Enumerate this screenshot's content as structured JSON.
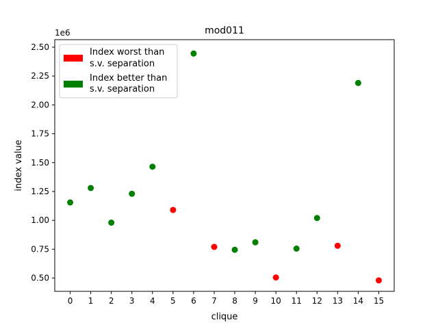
{
  "chart_data": {
    "type": "scatter",
    "title": "mod011",
    "xlabel": "clique",
    "ylabel": "index value",
    "y_offset_label": "1e6",
    "y_scale_factor": 1000000,
    "xlim": [
      -0.75,
      15.75
    ],
    "ylim": [
      0.385,
      2.565
    ],
    "x_ticks": [
      0,
      1,
      2,
      3,
      4,
      5,
      6,
      7,
      8,
      9,
      10,
      11,
      12,
      13,
      14,
      15
    ],
    "y_ticks": [
      0.5,
      0.75,
      1.0,
      1.25,
      1.5,
      1.75,
      2.0,
      2.25,
      2.5
    ],
    "y_tick_labels": [
      "0.50",
      "0.75",
      "1.00",
      "1.25",
      "1.50",
      "1.75",
      "2.00",
      "2.25",
      "2.50"
    ],
    "grid": false,
    "legend_position": "top-left",
    "legend": [
      {
        "label_lines": [
          "Index worst than",
          "s.v. separation"
        ],
        "color": "#ff0000"
      },
      {
        "label_lines": [
          "Index better than",
          "s.v. separation"
        ],
        "color": "#008000"
      }
    ],
    "points": [
      {
        "x": 0,
        "y": 1.155,
        "color": "#008000"
      },
      {
        "x": 1,
        "y": 1.28,
        "color": "#008000"
      },
      {
        "x": 2,
        "y": 0.98,
        "color": "#008000"
      },
      {
        "x": 3,
        "y": 1.23,
        "color": "#008000"
      },
      {
        "x": 4,
        "y": 1.465,
        "color": "#008000"
      },
      {
        "x": 5,
        "y": 1.09,
        "color": "#ff0000"
      },
      {
        "x": 6,
        "y": 2.445,
        "color": "#008000"
      },
      {
        "x": 7,
        "y": 0.77,
        "color": "#ff0000"
      },
      {
        "x": 8,
        "y": 0.745,
        "color": "#008000"
      },
      {
        "x": 9,
        "y": 0.81,
        "color": "#008000"
      },
      {
        "x": 10,
        "y": 0.505,
        "color": "#ff0000"
      },
      {
        "x": 11,
        "y": 0.755,
        "color": "#008000"
      },
      {
        "x": 12,
        "y": 1.02,
        "color": "#008000"
      },
      {
        "x": 13,
        "y": 0.78,
        "color": "#ff0000"
      },
      {
        "x": 14,
        "y": 2.19,
        "color": "#008000"
      },
      {
        "x": 15,
        "y": 0.48,
        "color": "#ff0000"
      }
    ]
  }
}
